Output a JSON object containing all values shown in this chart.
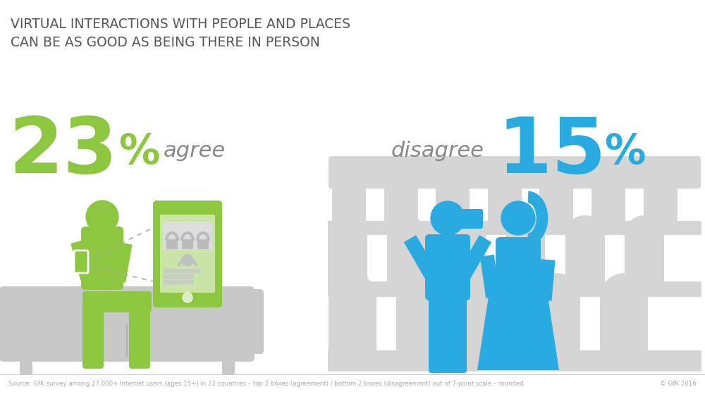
{
  "title_line1": "VIRTUAL INTERACTIONS WITH PEOPLE AND PLACES",
  "title_line2": "CAN BE AS GOOD AS BEING THERE IN PERSON",
  "agree_pct": "23",
  "disagree_pct": "15",
  "agree_label": "agree",
  "disagree_label": "disagree",
  "source_text": "Source: GfK survey among 27,000+ Internet users (ages 15+) in 22 countries – top 2 boxes (agreement) / bottom 2 boxes (disagreement) out of 7-point scale – rounded",
  "copyright_text": "© GfK 2016",
  "bg_color": "#ffffff",
  "title_color": "#555555",
  "agree_pct_color": "#8dc63f",
  "agree_label_color": "#888888",
  "disagree_pct_color": "#29abe2",
  "disagree_label_color": "#888888",
  "green_color": "#8dc63f",
  "blue_color": "#29abe2",
  "grey_color": "#c8c8c8",
  "gfk_bg_color": "#f15a22",
  "gfk_text_color": "#ffffff",
  "separator_color": "#cccccc",
  "source_color": "#aaaaaa"
}
